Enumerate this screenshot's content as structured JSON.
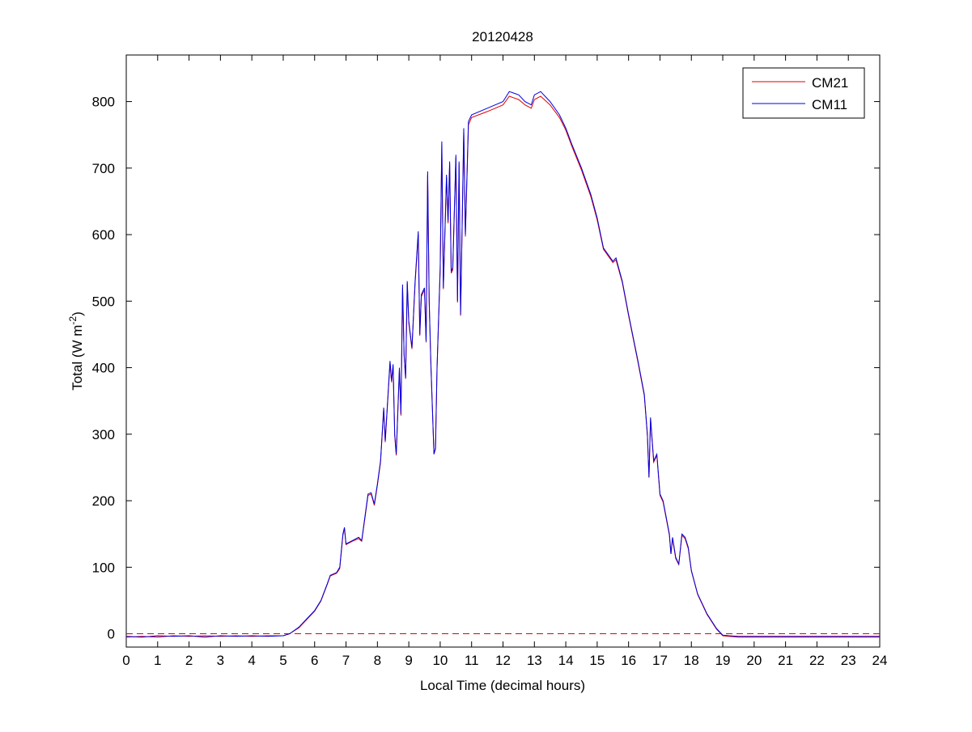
{
  "chart_data": {
    "type": "line",
    "title": "20120428",
    "xlabel": "Local Time (decimal hours)",
    "ylabel": "Total (W m",
    "ylabel_sup": "-2",
    "ylabel_end": ")",
    "xlim": [
      0,
      24
    ],
    "ylim": [
      -20,
      870
    ],
    "xticks": [
      0,
      1,
      2,
      3,
      4,
      5,
      6,
      7,
      8,
      9,
      10,
      11,
      12,
      13,
      14,
      15,
      16,
      17,
      18,
      19,
      20,
      21,
      22,
      23,
      24
    ],
    "yticks": [
      0,
      100,
      200,
      300,
      400,
      500,
      600,
      700,
      800
    ],
    "grid": false,
    "legend_position": "top-right",
    "reference_line": {
      "y": 0,
      "style": "dashed",
      "color": "#e00000"
    },
    "series": [
      {
        "name": "CM21",
        "color": "#e00000",
        "x": [
          0,
          0.5,
          1,
          1.5,
          2,
          2.5,
          3,
          3.5,
          4,
          4.5,
          5,
          5.2,
          5.5,
          5.8,
          6,
          6.2,
          6.4,
          6.5,
          6.7,
          6.8,
          6.9,
          6.95,
          7,
          7.2,
          7.4,
          7.5,
          7.6,
          7.7,
          7.8,
          7.9,
          8,
          8.1,
          8.2,
          8.25,
          8.4,
          8.45,
          8.5,
          8.55,
          8.6,
          8.7,
          8.75,
          8.8,
          8.85,
          8.9,
          8.95,
          9,
          9.1,
          9.2,
          9.3,
          9.35,
          9.4,
          9.5,
          9.55,
          9.6,
          9.65,
          9.7,
          9.8,
          9.85,
          9.9,
          10,
          10.05,
          10.1,
          10.2,
          10.25,
          10.3,
          10.35,
          10.4,
          10.5,
          10.55,
          10.6,
          10.65,
          10.7,
          10.75,
          10.8,
          10.9,
          11,
          11.5,
          12,
          12.2,
          12.5,
          12.7,
          12.9,
          13,
          13.2,
          13.5,
          13.8,
          14,
          14.2,
          14.5,
          14.8,
          15,
          15.2,
          15.5,
          15.6,
          15.8,
          16,
          16.3,
          16.5,
          16.6,
          16.65,
          16.7,
          16.8,
          16.9,
          17,
          17.1,
          17.3,
          17.35,
          17.4,
          17.5,
          17.6,
          17.7,
          17.8,
          17.9,
          18,
          18.2,
          18.5,
          18.8,
          19,
          19.2,
          19.5,
          20,
          21,
          22,
          23,
          24
        ],
        "y": [
          -5,
          -4,
          -5,
          -3,
          -4,
          -3,
          -4,
          -3,
          -4,
          -3,
          -3,
          0,
          9,
          24,
          34,
          49,
          74,
          87,
          91,
          98,
          148,
          158,
          134,
          139,
          143,
          139,
          173,
          208,
          210,
          193,
          223,
          258,
          337,
          288,
          407,
          378,
          402,
          298,
          268,
          397,
          328,
          520,
          418,
          383,
          527,
          467,
          428,
          527,
          600,
          448,
          507,
          517,
          438,
          690,
          498,
          408,
          270,
          278,
          398,
          547,
          735,
          518,
          686,
          617,
          706,
          542,
          547,
          716,
          498,
          706,
          478,
          617,
          755,
          597,
          765,
          776,
          785,
          795,
          808,
          803,
          795,
          790,
          803,
          808,
          795,
          776,
          757,
          732,
          697,
          657,
          622,
          578,
          558,
          562,
          528,
          478,
          408,
          358,
          298,
          235,
          322,
          258,
          268,
          208,
          198,
          148,
          120,
          143,
          113,
          104,
          148,
          143,
          128,
          94,
          59,
          29,
          7,
          -3,
          -4,
          -5,
          -5,
          -5,
          -5,
          -5,
          -5
        ]
      },
      {
        "name": "CM11",
        "color": "#0000e0",
        "x": [
          0,
          0.5,
          1,
          1.5,
          2,
          2.5,
          3,
          3.5,
          4,
          4.5,
          5,
          5.2,
          5.5,
          5.8,
          6,
          6.2,
          6.4,
          6.5,
          6.7,
          6.8,
          6.9,
          6.95,
          7,
          7.2,
          7.4,
          7.5,
          7.6,
          7.7,
          7.8,
          7.9,
          8,
          8.1,
          8.2,
          8.25,
          8.4,
          8.45,
          8.5,
          8.55,
          8.6,
          8.7,
          8.75,
          8.8,
          8.85,
          8.9,
          8.95,
          9,
          9.1,
          9.2,
          9.3,
          9.35,
          9.4,
          9.5,
          9.55,
          9.6,
          9.65,
          9.7,
          9.8,
          9.85,
          9.9,
          10,
          10.05,
          10.1,
          10.2,
          10.25,
          10.3,
          10.35,
          10.4,
          10.5,
          10.55,
          10.6,
          10.65,
          10.7,
          10.75,
          10.8,
          10.9,
          11,
          11.5,
          12,
          12.2,
          12.5,
          12.7,
          12.9,
          13,
          13.2,
          13.5,
          13.8,
          14,
          14.2,
          14.5,
          14.8,
          15,
          15.2,
          15.5,
          15.6,
          15.8,
          16,
          16.3,
          16.5,
          16.6,
          16.65,
          16.7,
          16.8,
          16.9,
          17,
          17.1,
          17.3,
          17.35,
          17.4,
          17.5,
          17.6,
          17.7,
          17.8,
          17.9,
          18,
          18.2,
          18.5,
          18.8,
          19,
          19.2,
          19.5,
          20,
          21,
          22,
          23,
          24
        ],
        "y": [
          -4,
          -5,
          -3,
          -4,
          -3,
          -5,
          -3,
          -4,
          -3,
          -4,
          -3,
          0,
          10,
          25,
          35,
          50,
          75,
          88,
          92,
          100,
          150,
          160,
          135,
          140,
          145,
          140,
          175,
          210,
          212,
          195,
          225,
          260,
          340,
          290,
          410,
          380,
          405,
          300,
          270,
          400,
          330,
          525,
          420,
          385,
          530,
          470,
          430,
          530,
          605,
          450,
          510,
          520,
          440,
          695,
          500,
          410,
          270,
          280,
          400,
          550,
          740,
          520,
          690,
          620,
          710,
          545,
          550,
          720,
          500,
          710,
          480,
          620,
          760,
          600,
          770,
          780,
          790,
          800,
          815,
          810,
          800,
          795,
          810,
          815,
          800,
          780,
          760,
          735,
          700,
          660,
          625,
          580,
          560,
          565,
          530,
          480,
          410,
          360,
          300,
          235,
          325,
          260,
          270,
          210,
          200,
          150,
          120,
          145,
          115,
          105,
          150,
          145,
          130,
          95,
          60,
          30,
          8,
          -2,
          -3,
          -4,
          -4,
          -4,
          -4,
          -4,
          -4
        ]
      }
    ]
  }
}
